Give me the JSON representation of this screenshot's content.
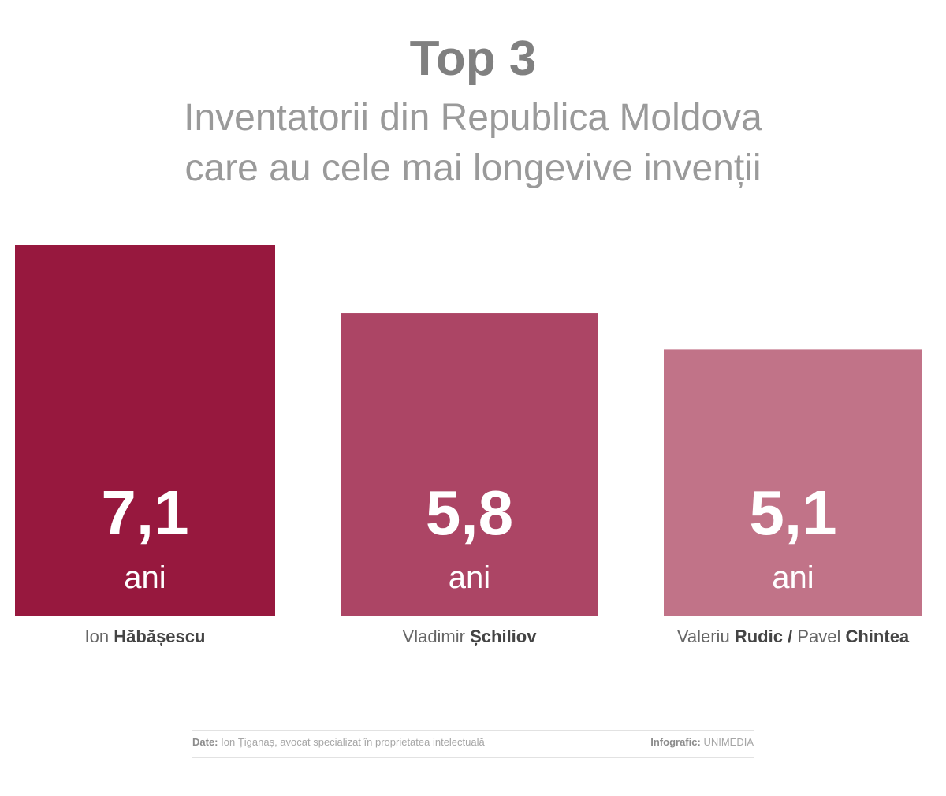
{
  "header": {
    "title": "Top 3",
    "subtitle_line1": "Inventatorii din Republica Moldova",
    "subtitle_line2": "care au cele mai longevive invenții"
  },
  "chart_data": {
    "type": "bar",
    "title": "Top 3",
    "subtitle": "Inventatorii din Republica Moldova care au cele mai longevive invenții",
    "categories": [
      "Ion Hăbășescu",
      "Vladimir Șchiliov",
      "Valeriu Rudic / Pavel Chintea"
    ],
    "values": [
      7.1,
      5.8,
      5.1
    ],
    "value_labels": [
      "7,1",
      "5,8",
      "5,1"
    ],
    "unit": "ani",
    "colors": [
      "#97183e",
      "#ac4565",
      "#c17388"
    ],
    "xlabel": "",
    "ylabel": "",
    "grid": false
  },
  "labels": {
    "bar1": {
      "first": "Ion",
      "last": "Hăbășescu"
    },
    "bar2": {
      "first": "Vladimir",
      "last": "Șchiliov"
    },
    "bar3": {
      "first1": "Valeriu",
      "last1": "Rudic",
      "sep": "/",
      "first2": "Pavel",
      "last2": "Chintea"
    }
  },
  "footer": {
    "source_label": "Date:",
    "source_text": "Ion Țiganaș, avocat specializat în proprietatea intelectuală",
    "credit_label": "Infografic:",
    "credit_text": "UNIMEDIA"
  }
}
